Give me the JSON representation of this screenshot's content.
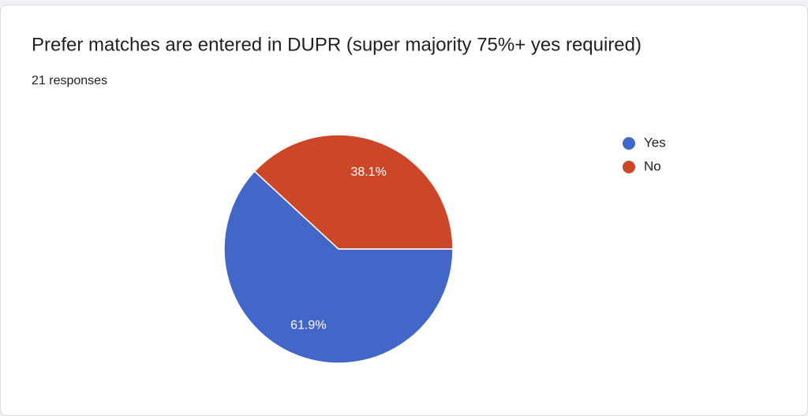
{
  "chart_data": {
    "type": "pie",
    "title": "Prefer matches are entered in DUPR (super majority 75%+ yes required)",
    "subtitle": "21 responses",
    "categories": [
      "Yes",
      "No"
    ],
    "values": [
      61.9,
      38.1
    ],
    "value_labels": [
      "61.9%",
      "38.1%"
    ],
    "colors": [
      "#4267c8",
      "#cc4727"
    ],
    "legend": "right"
  }
}
